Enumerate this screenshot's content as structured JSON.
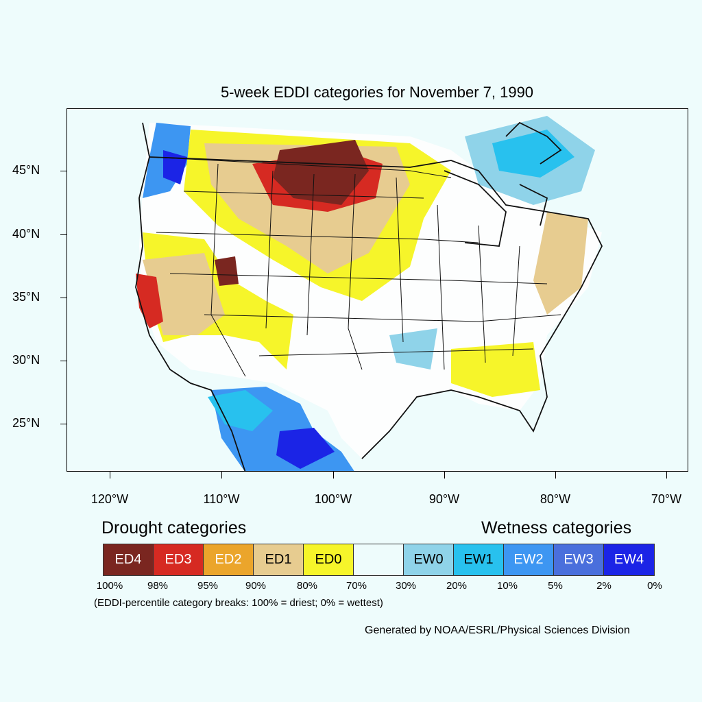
{
  "title": "5-week EDDI categories for November 7, 1990",
  "y_axis": {
    "labels": [
      "45°N",
      "40°N",
      "35°N",
      "30°N",
      "25°N"
    ]
  },
  "x_axis": {
    "labels": [
      "120°W",
      "110°W",
      "100°W",
      "90°W",
      "80°W",
      "70°W"
    ]
  },
  "legend": {
    "drought_heading": "Drought categories",
    "wetness_heading": "Wetness categories",
    "categories": [
      {
        "label": "ED4",
        "color": "#7a2620",
        "text_color": "#ffffff"
      },
      {
        "label": "ED3",
        "color": "#d62a22",
        "text_color": "#ffffff"
      },
      {
        "label": "ED2",
        "color": "#eba52b",
        "text_color": "#ffffff"
      },
      {
        "label": "ED1",
        "color": "#e7cc90",
        "text_color": "#000000"
      },
      {
        "label": "ED0",
        "color": "#f6f52a",
        "text_color": "#000000"
      },
      {
        "label": "",
        "color": "#eefcfc",
        "text_color": "#000000"
      },
      {
        "label": "EW0",
        "color": "#8fd3e9",
        "text_color": "#000000"
      },
      {
        "label": "EW1",
        "color": "#28c1ee",
        "text_color": "#000000"
      },
      {
        "label": "EW2",
        "color": "#3d96f2",
        "text_color": "#ffffff"
      },
      {
        "label": "EW3",
        "color": "#4a6fdc",
        "text_color": "#ffffff"
      },
      {
        "label": "EW4",
        "color": "#1b24e6",
        "text_color": "#ffffff"
      }
    ],
    "percentiles": [
      "100%",
      "98%",
      "95%",
      "90%",
      "80%",
      "70%",
      "30%",
      "20%",
      "10%",
      "5%",
      "2%",
      "0%"
    ],
    "note": "(EDDI-percentile category breaks: 100% = driest; 0% = wettest)"
  },
  "credit": "Generated by NOAA/ESRL/Physical Sciences Division"
}
